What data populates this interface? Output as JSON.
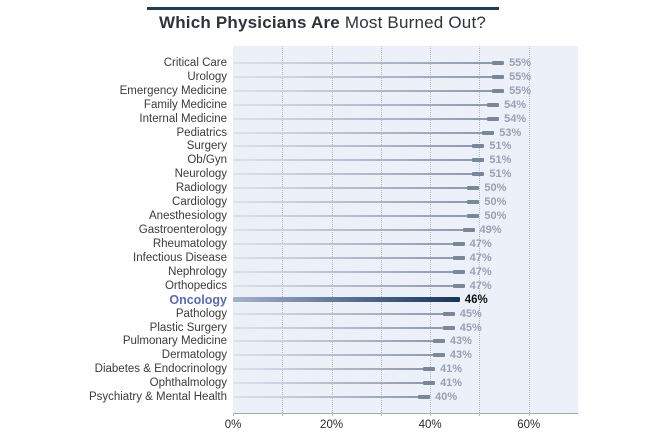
{
  "title": {
    "bold": "Which Physicians Are",
    "regular": " Most Burned Out?"
  },
  "chart_data": {
    "type": "bar",
    "orientation": "horizontal",
    "title": "Which Physicians Are Most Burned Out?",
    "xlabel": "",
    "ylabel": "",
    "xlim": [
      0,
      70
    ],
    "grid": "vertical-dotted",
    "legend": "none",
    "categories": [
      "Critical Care",
      "Urology",
      "Emergency Medicine",
      "Family Medicine",
      "Internal Medicine",
      "Pediatrics",
      "Surgery",
      "Ob/Gyn",
      "Neurology",
      "Radiology",
      "Cardiology",
      "Anesthesiology",
      "Gastroenterology",
      "Rheumatology",
      "Infectious Disease",
      "Nephrology",
      "Orthopedics",
      "Oncology",
      "Pathology",
      "Plastic Surgery",
      "Pulmonary Medicine",
      "Dermatology",
      "Diabetes & Endocrinology",
      "Ophthalmology",
      "Psychiatry & Mental Health"
    ],
    "values": [
      55,
      55,
      55,
      54,
      54,
      53,
      51,
      51,
      51,
      50,
      50,
      50,
      49,
      47,
      47,
      47,
      47,
      46,
      45,
      45,
      43,
      43,
      41,
      41,
      40
    ],
    "value_labels": [
      "55%",
      "55%",
      "55%",
      "54%",
      "54%",
      "53%",
      "51%",
      "51%",
      "51%",
      "50%",
      "50%",
      "50%",
      "49%",
      "47%",
      "47%",
      "47%",
      "47%",
      "46%",
      "45%",
      "45%",
      "43%",
      "43%",
      "41%",
      "41%",
      "40%"
    ],
    "highlight_category": "Oncology",
    "highlight_index": 17,
    "x_ticks": [
      "0%",
      "20%",
      "40%",
      "60%"
    ],
    "x_tick_values": [
      0,
      20,
      40,
      60
    ],
    "gridlines_percent": [
      10,
      20,
      30,
      40,
      50,
      60
    ],
    "axis_tick_values": [
      0,
      10,
      20,
      30,
      40,
      50,
      60
    ]
  },
  "colors": {
    "title_rule": "#203d5c",
    "title_text": "#2e3338",
    "plot_bg": "#ecf1f9",
    "gridline": "#b3bac8",
    "axis_line": "#a0a7b0",
    "tick_label": "#2a2a2a",
    "label_text": "#3b3b3b",
    "bar_start": "#dde3ed",
    "bar_end": "#8a96a9",
    "bar_cap": "#7a8799",
    "value_label": "#99a1b1",
    "highlight_bar_start": "#a3b2c9",
    "highlight_bar_end": "#16335b",
    "highlight_label": "#5b6ab8",
    "highlight_value": "#111111"
  }
}
